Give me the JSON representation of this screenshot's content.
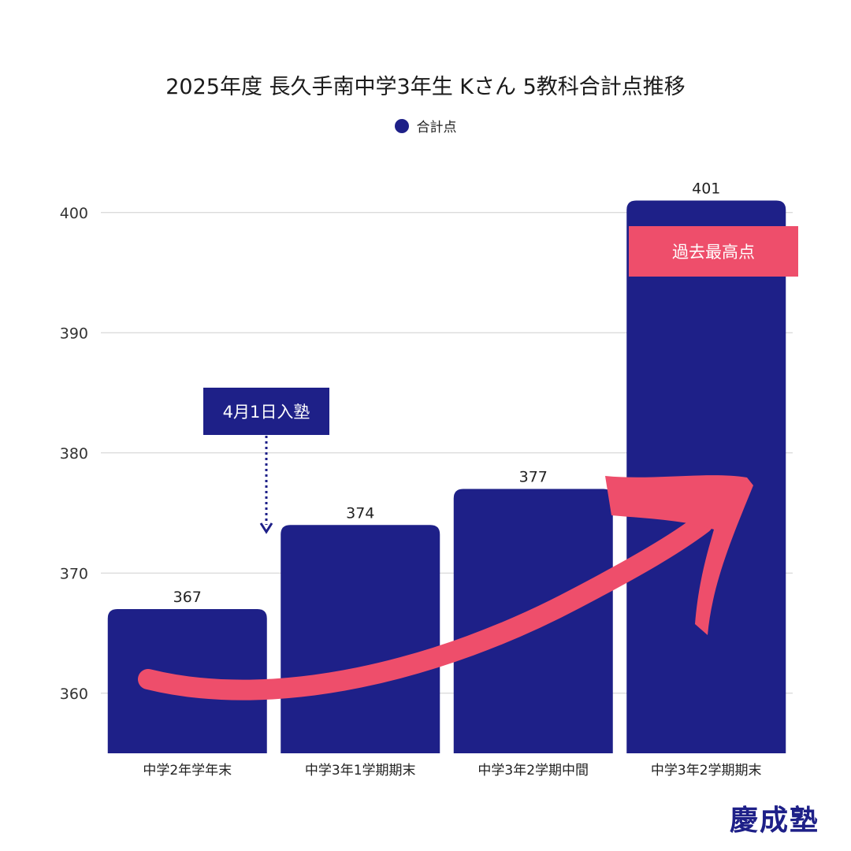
{
  "chart_data": {
    "type": "bar",
    "title": "2025年度 長久手南中学3年生 Kさん 5教科合計点推移",
    "categories": [
      "中学2年学年末",
      "中学3年1学期期末",
      "中学3年2学期中間",
      "中学3年2学期期末"
    ],
    "series": [
      {
        "name": "合計点",
        "values": [
          367,
          374,
          377,
          401
        ]
      }
    ],
    "ylim": [
      355,
      401
    ],
    "yticks": [
      360,
      370,
      380,
      390,
      400
    ],
    "xlabel": "",
    "ylabel": "",
    "grid": true,
    "legend": "top-center",
    "annotations": [
      {
        "text": "4月1日入塾",
        "points_to": "中学3年1学期期末"
      },
      {
        "text": "過去最高点",
        "on": "中学3年2学期期末"
      }
    ]
  },
  "colors": {
    "bar": "#1e2088",
    "accent": "#ee4e6b",
    "grid": "#cfcfcf"
  },
  "brand": {
    "name": "慶成塾"
  }
}
